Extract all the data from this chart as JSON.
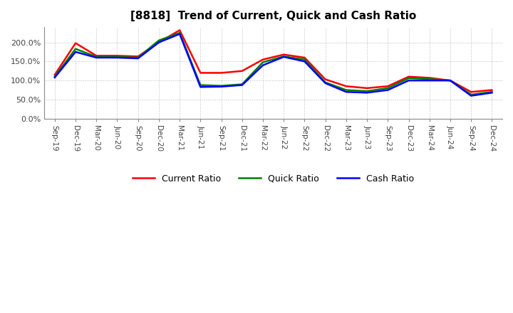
{
  "title": "[8818]  Trend of Current, Quick and Cash Ratio",
  "labels": [
    "Sep-19",
    "Dec-19",
    "Mar-20",
    "Jun-20",
    "Sep-20",
    "Dec-20",
    "Mar-21",
    "Jun-21",
    "Sep-21",
    "Dec-21",
    "Mar-22",
    "Jun-22",
    "Sep-22",
    "Dec-22",
    "Mar-23",
    "Jun-23",
    "Sep-23",
    "Dec-23",
    "Mar-24",
    "Jun-24",
    "Sep-24",
    "Dec-24"
  ],
  "current_ratio": [
    115,
    198,
    165,
    165,
    163,
    200,
    232,
    120,
    120,
    125,
    155,
    168,
    160,
    103,
    85,
    80,
    85,
    110,
    107,
    100,
    70,
    75
  ],
  "quick_ratio": [
    110,
    183,
    162,
    162,
    160,
    205,
    225,
    88,
    86,
    90,
    148,
    163,
    155,
    95,
    75,
    72,
    80,
    106,
    104,
    100,
    63,
    70
  ],
  "cash_ratio": [
    108,
    175,
    160,
    160,
    158,
    200,
    222,
    83,
    84,
    88,
    140,
    162,
    150,
    93,
    70,
    68,
    75,
    100,
    100,
    100,
    60,
    68
  ],
  "current_color": "#FF0000",
  "quick_color": "#008000",
  "cash_color": "#0000FF",
  "ylim": [
    0,
    240
  ],
  "yticks": [
    0,
    50,
    100,
    150,
    200
  ],
  "ytick_labels": [
    "0.0%",
    "50.0%",
    "100.0%",
    "150.0%",
    "200.0%"
  ],
  "line_width": 1.8,
  "bg_color": "#FFFFFF",
  "plot_bg_color": "#FFFFFF",
  "grid_color": "#BBBBBB",
  "legend_labels": [
    "Current Ratio",
    "Quick Ratio",
    "Cash Ratio"
  ]
}
